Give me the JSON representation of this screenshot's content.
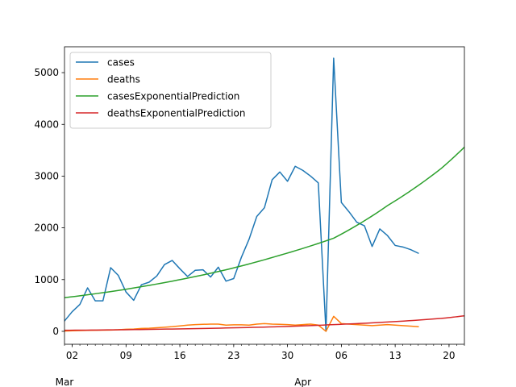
{
  "chart_data": {
    "type": "line",
    "title": "",
    "xlabel": "",
    "ylabel": "",
    "x_range": [
      "2020-03-01",
      "2020-04-22"
    ],
    "ylim": [
      -250,
      5500
    ],
    "grid": false,
    "legend_position": "top-left",
    "y_ticks": [
      0,
      1000,
      2000,
      3000,
      4000,
      5000
    ],
    "x_ticks": [
      {
        "date": "2020-03-02",
        "label": "02"
      },
      {
        "date": "2020-03-09",
        "label": "09"
      },
      {
        "date": "2020-03-16",
        "label": "16"
      },
      {
        "date": "2020-03-23",
        "label": "23"
      },
      {
        "date": "2020-03-30",
        "label": "30"
      },
      {
        "date": "2020-04-06",
        "label": "06"
      },
      {
        "date": "2020-04-13",
        "label": "13"
      },
      {
        "date": "2020-04-20",
        "label": "20"
      }
    ],
    "x_month_labels": [
      {
        "date": "2020-03-01",
        "label": "Mar"
      },
      {
        "date": "2020-04-01",
        "label": "Apr"
      }
    ],
    "series": [
      {
        "name": "cases",
        "color": "#1f77b4",
        "x": [
          "2020-03-01",
          "2020-03-02",
          "2020-03-03",
          "2020-03-04",
          "2020-03-05",
          "2020-03-06",
          "2020-03-07",
          "2020-03-08",
          "2020-03-09",
          "2020-03-10",
          "2020-03-11",
          "2020-03-12",
          "2020-03-13",
          "2020-03-14",
          "2020-03-15",
          "2020-03-16",
          "2020-03-17",
          "2020-03-18",
          "2020-03-19",
          "2020-03-20",
          "2020-03-21",
          "2020-03-22",
          "2020-03-23",
          "2020-03-24",
          "2020-03-25",
          "2020-03-26",
          "2020-03-27",
          "2020-03-28",
          "2020-03-29",
          "2020-03-30",
          "2020-03-31",
          "2020-04-01",
          "2020-04-02",
          "2020-04-03",
          "2020-04-04",
          "2020-04-05",
          "2020-04-06",
          "2020-04-07",
          "2020-04-08",
          "2020-04-09",
          "2020-04-10",
          "2020-04-11",
          "2020-04-12",
          "2020-04-13",
          "2020-04-14",
          "2020-04-15",
          "2020-04-16"
        ],
        "y": [
          200,
          380,
          520,
          840,
          590,
          590,
          1230,
          1080,
          760,
          600,
          900,
          950,
          1070,
          1290,
          1370,
          1210,
          1060,
          1180,
          1190,
          1050,
          1240,
          970,
          1020,
          1430,
          1780,
          2220,
          2390,
          2930,
          3080,
          2900,
          3190,
          3110,
          3000,
          2870,
          0,
          5280,
          2490,
          2310,
          2110,
          2040,
          1640,
          1980,
          1850,
          1660,
          1630,
          1580,
          1510
        ]
      },
      {
        "name": "deaths",
        "color": "#ff7f0e",
        "x": [
          "2020-03-01",
          "2020-03-02",
          "2020-03-03",
          "2020-03-04",
          "2020-03-05",
          "2020-03-06",
          "2020-03-07",
          "2020-03-08",
          "2020-03-09",
          "2020-03-10",
          "2020-03-11",
          "2020-03-12",
          "2020-03-13",
          "2020-03-14",
          "2020-03-15",
          "2020-03-16",
          "2020-03-17",
          "2020-03-18",
          "2020-03-19",
          "2020-03-20",
          "2020-03-21",
          "2020-03-22",
          "2020-03-23",
          "2020-03-24",
          "2020-03-25",
          "2020-03-26",
          "2020-03-27",
          "2020-03-28",
          "2020-03-29",
          "2020-03-30",
          "2020-03-31",
          "2020-04-01",
          "2020-04-02",
          "2020-04-03",
          "2020-04-04",
          "2020-04-05",
          "2020-04-06",
          "2020-04-07",
          "2020-04-08",
          "2020-04-09",
          "2020-04-10",
          "2020-04-11",
          "2020-04-12",
          "2020-04-13",
          "2020-04-14",
          "2020-04-15",
          "2020-04-16"
        ],
        "y": [
          5,
          12,
          15,
          18,
          20,
          22,
          25,
          30,
          40,
          45,
          55,
          60,
          70,
          80,
          90,
          105,
          120,
          130,
          135,
          140,
          140,
          120,
          125,
          125,
          120,
          140,
          150,
          140,
          135,
          130,
          120,
          130,
          140,
          120,
          0,
          290,
          150,
          140,
          130,
          120,
          110,
          120,
          130,
          120,
          110,
          100,
          90
        ]
      },
      {
        "name": "casesExponentialPrediction",
        "color": "#2ca02c",
        "x": [
          "2020-03-01",
          "2020-03-08",
          "2020-03-15",
          "2020-03-22",
          "2020-03-29",
          "2020-04-05",
          "2020-04-12",
          "2020-04-19",
          "2020-04-22"
        ],
        "y": [
          650,
          790,
          970,
          1190,
          1470,
          1800,
          2430,
          3150,
          3560
        ]
      },
      {
        "name": "deathsExponentialPrediction",
        "color": "#d62728",
        "x": [
          "2020-03-01",
          "2020-03-08",
          "2020-03-15",
          "2020-03-22",
          "2020-03-29",
          "2020-04-05",
          "2020-04-12",
          "2020-04-19",
          "2020-04-22"
        ],
        "y": [
          20,
          30,
          45,
          65,
          90,
          130,
          180,
          250,
          300
        ]
      }
    ]
  }
}
